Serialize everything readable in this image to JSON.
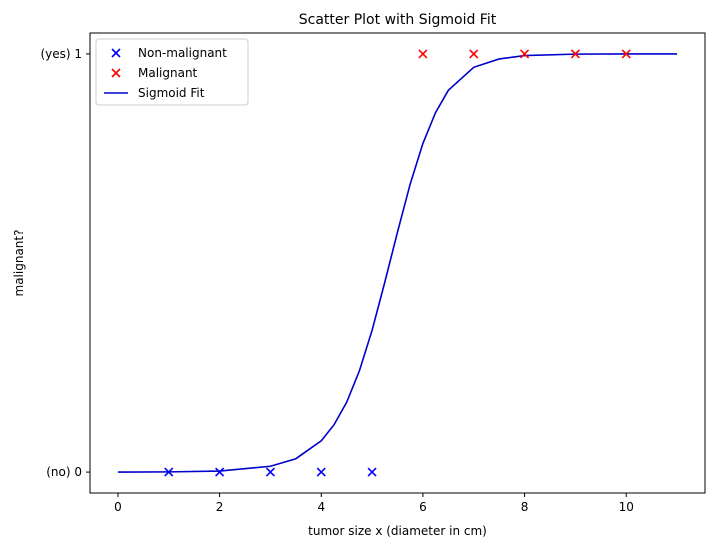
{
  "chart_data": {
    "type": "scatter",
    "title": "Scatter Plot with Sigmoid Fit",
    "xlabel": "tumor size x (diameter in cm)",
    "ylabel": "malignant?",
    "xlim": [
      -0.55,
      11.55
    ],
    "ylim": [
      -0.05,
      1.05
    ],
    "x_ticks": [
      0,
      2,
      4,
      6,
      8,
      10
    ],
    "y_ticks": [
      {
        "value": 0,
        "label": "(no) 0"
      },
      {
        "value": 1,
        "label": "(yes) 1"
      }
    ],
    "grid": false,
    "legend_position": "top-left",
    "series": [
      {
        "name": "Non-malignant",
        "kind": "scatter",
        "marker": "x",
        "color": "#0000ff",
        "x": [
          1,
          2,
          3,
          4,
          5
        ],
        "y": [
          0,
          0,
          0,
          0,
          0
        ]
      },
      {
        "name": "Malignant",
        "kind": "scatter",
        "marker": "x",
        "color": "#ff0000",
        "x": [
          6,
          7,
          8,
          9,
          10
        ],
        "y": [
          1,
          1,
          1,
          1,
          1
        ]
      },
      {
        "name": "Sigmoid Fit",
        "kind": "line",
        "color": "#0000cc",
        "x": [
          0,
          1,
          2,
          3,
          3.5,
          4,
          4.25,
          4.5,
          4.75,
          5,
          5.25,
          5.5,
          5.75,
          6,
          6.25,
          6.5,
          7,
          7.5,
          8,
          9,
          10,
          11
        ],
        "y": [
          0.0001,
          0.0005,
          0.0025,
          0.014,
          0.032,
          0.075,
          0.113,
          0.167,
          0.242,
          0.339,
          0.454,
          0.574,
          0.689,
          0.786,
          0.86,
          0.913,
          0.968,
          0.988,
          0.996,
          0.9995,
          0.9999,
          1.0
        ]
      }
    ]
  }
}
